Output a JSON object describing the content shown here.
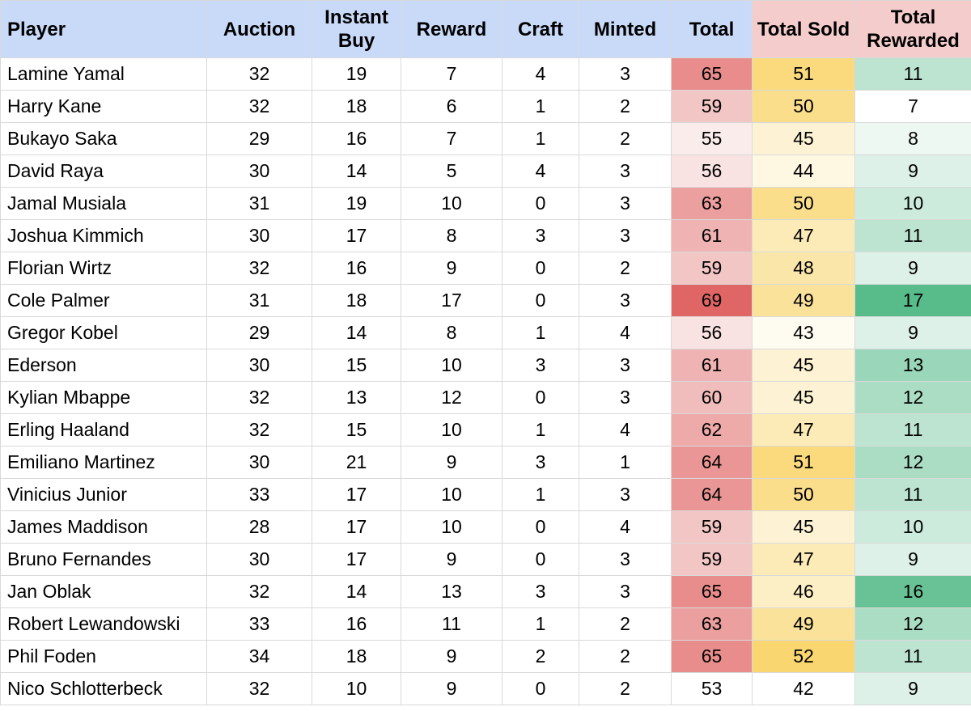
{
  "headers": {
    "player": "Player",
    "auction": "Auction",
    "instant_buy": "Instant Buy",
    "reward": "Reward",
    "craft": "Craft",
    "minted": "Minted",
    "total": "Total",
    "total_sold": "Total Sold",
    "total_rewarded": "Total Rewarded"
  },
  "colors": {
    "header_blue": "#c9daf8",
    "header_pink": "#f4cccc",
    "total_scale": [
      "#ffffff",
      "#e06666"
    ],
    "total_sold_scale": [
      "#ffffff",
      "#f9d66f"
    ],
    "total_rewarded_scale": [
      "#ffffff",
      "#57bb8a"
    ]
  },
  "rows": [
    {
      "player": "Lamine Yamal",
      "auction": "32",
      "instant_buy": "19",
      "reward": "7",
      "craft": "4",
      "minted": "3",
      "total": "65",
      "total_sold": "51",
      "total_rewarded": "11"
    },
    {
      "player": "Harry Kane",
      "auction": "32",
      "instant_buy": "18",
      "reward": "6",
      "craft": "1",
      "minted": "2",
      "total": "59",
      "total_sold": "50",
      "total_rewarded": "7"
    },
    {
      "player": "Bukayo Saka",
      "auction": "29",
      "instant_buy": "16",
      "reward": "7",
      "craft": "1",
      "minted": "2",
      "total": "55",
      "total_sold": "45",
      "total_rewarded": "8"
    },
    {
      "player": "David Raya",
      "auction": "30",
      "instant_buy": "14",
      "reward": "5",
      "craft": "4",
      "minted": "3",
      "total": "56",
      "total_sold": "44",
      "total_rewarded": "9"
    },
    {
      "player": "Jamal Musiala",
      "auction": "31",
      "instant_buy": "19",
      "reward": "10",
      "craft": "0",
      "minted": "3",
      "total": "63",
      "total_sold": "50",
      "total_rewarded": "10"
    },
    {
      "player": "Joshua Kimmich",
      "auction": "30",
      "instant_buy": "17",
      "reward": "8",
      "craft": "3",
      "minted": "3",
      "total": "61",
      "total_sold": "47",
      "total_rewarded": "11"
    },
    {
      "player": "Florian Wirtz",
      "auction": "32",
      "instant_buy": "16",
      "reward": "9",
      "craft": "0",
      "minted": "2",
      "total": "59",
      "total_sold": "48",
      "total_rewarded": "9"
    },
    {
      "player": "Cole Palmer",
      "auction": "31",
      "instant_buy": "18",
      "reward": "17",
      "craft": "0",
      "minted": "3",
      "total": "69",
      "total_sold": "49",
      "total_rewarded": "17"
    },
    {
      "player": "Gregor Kobel",
      "auction": "29",
      "instant_buy": "14",
      "reward": "8",
      "craft": "1",
      "minted": "4",
      "total": "56",
      "total_sold": "43",
      "total_rewarded": "9"
    },
    {
      "player": "Ederson",
      "auction": "30",
      "instant_buy": "15",
      "reward": "10",
      "craft": "3",
      "minted": "3",
      "total": "61",
      "total_sold": "45",
      "total_rewarded": "13"
    },
    {
      "player": "Kylian Mbappe",
      "auction": "32",
      "instant_buy": "13",
      "reward": "12",
      "craft": "0",
      "minted": "3",
      "total": "60",
      "total_sold": "45",
      "total_rewarded": "12"
    },
    {
      "player": "Erling Haaland",
      "auction": "32",
      "instant_buy": "15",
      "reward": "10",
      "craft": "1",
      "minted": "4",
      "total": "62",
      "total_sold": "47",
      "total_rewarded": "11"
    },
    {
      "player": "Emiliano Martinez",
      "auction": "30",
      "instant_buy": "21",
      "reward": "9",
      "craft": "3",
      "minted": "1",
      "total": "64",
      "total_sold": "51",
      "total_rewarded": "12"
    },
    {
      "player": "Vinicius Junior",
      "auction": "33",
      "instant_buy": "17",
      "reward": "10",
      "craft": "1",
      "minted": "3",
      "total": "64",
      "total_sold": "50",
      "total_rewarded": "11"
    },
    {
      "player": "James Maddison",
      "auction": "28",
      "instant_buy": "17",
      "reward": "10",
      "craft": "0",
      "minted": "4",
      "total": "59",
      "total_sold": "45",
      "total_rewarded": "10"
    },
    {
      "player": "Bruno Fernandes",
      "auction": "30",
      "instant_buy": "17",
      "reward": "9",
      "craft": "0",
      "minted": "3",
      "total": "59",
      "total_sold": "47",
      "total_rewarded": "9"
    },
    {
      "player": "Jan Oblak",
      "auction": "32",
      "instant_buy": "14",
      "reward": "13",
      "craft": "3",
      "minted": "3",
      "total": "65",
      "total_sold": "46",
      "total_rewarded": "16"
    },
    {
      "player": "Robert Lewandowski",
      "auction": "33",
      "instant_buy": "16",
      "reward": "11",
      "craft": "1",
      "minted": "2",
      "total": "63",
      "total_sold": "49",
      "total_rewarded": "12"
    },
    {
      "player": "Phil Foden",
      "auction": "34",
      "instant_buy": "18",
      "reward": "9",
      "craft": "2",
      "minted": "2",
      "total": "65",
      "total_sold": "52",
      "total_rewarded": "11"
    },
    {
      "player": "Nico Schlotterbeck",
      "auction": "32",
      "instant_buy": "10",
      "reward": "9",
      "craft": "0",
      "minted": "2",
      "total": "53",
      "total_sold": "42",
      "total_rewarded": "9"
    }
  ]
}
